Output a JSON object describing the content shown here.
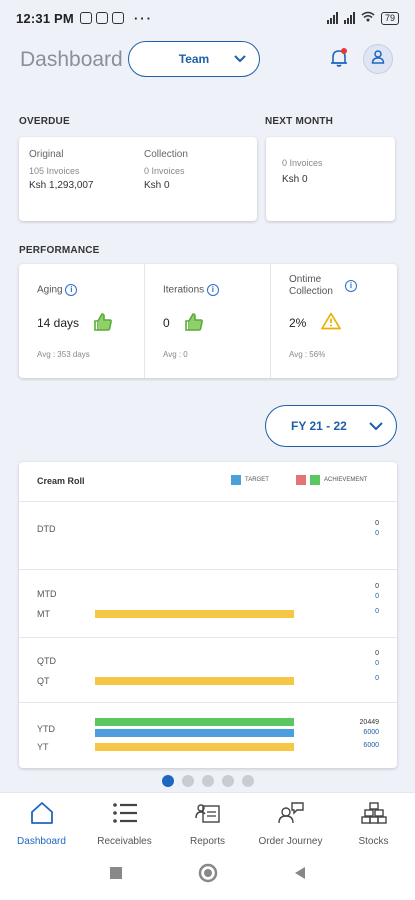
{
  "status_bar": {
    "time": "12:31 PM",
    "battery": "79"
  },
  "header": {
    "title": "Dashboard",
    "team_label": "Team"
  },
  "overdue": {
    "section_label": "OVERDUE",
    "original": {
      "label": "Original",
      "invoices": "105 Invoices",
      "amount": "Ksh 1,293,007"
    },
    "collection": {
      "label": "Collection",
      "invoices": "0 Invoices",
      "amount": "Ksh 0"
    }
  },
  "next_month": {
    "section_label": "NEXT MONTH",
    "invoices": "0 Invoices",
    "amount": "Ksh 0"
  },
  "performance": {
    "section_label": "PERFORMANCE",
    "aging": {
      "label": "Aging",
      "value": "14 days",
      "avg": "Avg : 353 days",
      "status": "thumbs-up"
    },
    "iterations": {
      "label": "Iterations",
      "value": "0",
      "avg": "Avg : 0",
      "status": "thumbs-up"
    },
    "ontime": {
      "label_line1": "Ontime",
      "label_line2": "Collection",
      "value": "2%",
      "avg": "Avg : 56%",
      "status": "warning"
    }
  },
  "fy_selector": {
    "label": "FY 21 - 22"
  },
  "chart": {
    "title": "Cream Roll",
    "legend_target": "TARGET",
    "legend_achievement": "ACHIEVEMENT"
  },
  "chart_data": {
    "type": "bar",
    "title": "Cream Roll",
    "series": [
      {
        "name": "TARGET",
        "color": "#4a9fdc"
      },
      {
        "name": "ACHIEVEMENT",
        "colors": [
          "#e57373",
          "#5cc660"
        ]
      }
    ],
    "max_value": 6000,
    "rows": [
      {
        "group": "dtd",
        "label": "DTD",
        "numbers": [
          "0",
          "0"
        ],
        "bar": null
      },
      {
        "group": "mtd",
        "label": "MTD",
        "numbers": [
          "0",
          "0"
        ],
        "bar": null
      },
      {
        "group": "mtd",
        "label": "MT",
        "numbers": [
          "0"
        ],
        "bar": {
          "color": "#f6c744",
          "value": 6000
        }
      },
      {
        "group": "qtd",
        "label": "QTD",
        "numbers": [
          "0",
          "0"
        ],
        "bar": null
      },
      {
        "group": "qtd",
        "label": "QT",
        "numbers": [
          "0"
        ],
        "bar": {
          "color": "#f6c744",
          "value": 6000
        }
      },
      {
        "group": "ytd",
        "label": "YTD",
        "numbers": [
          "20449",
          "6000"
        ],
        "bars": [
          {
            "color": "#5cc660",
            "value": 6000
          },
          {
            "color": "#4a9fdc",
            "value": 6000
          }
        ]
      },
      {
        "group": "ytd",
        "label": "YT",
        "numbers": [
          "6000"
        ],
        "bar": {
          "color": "#f6c744",
          "value": 6000
        }
      }
    ]
  },
  "pager": {
    "count": 5,
    "active": 0
  },
  "bottom_nav": [
    {
      "label": "Dashboard",
      "icon": "home-icon",
      "active": true
    },
    {
      "label": "Receivables",
      "icon": "list-icon",
      "active": false
    },
    {
      "label": "Reports",
      "icon": "report-icon",
      "active": false
    },
    {
      "label": "Order Journey",
      "icon": "order-journey-icon",
      "active": false
    },
    {
      "label": "Stocks",
      "icon": "stocks-icon",
      "active": false
    }
  ],
  "colors": {
    "accent": "#1f5fa8",
    "background": "#eef1f8",
    "thumbs": "#5aaa3a",
    "warning": "#e8b100"
  }
}
